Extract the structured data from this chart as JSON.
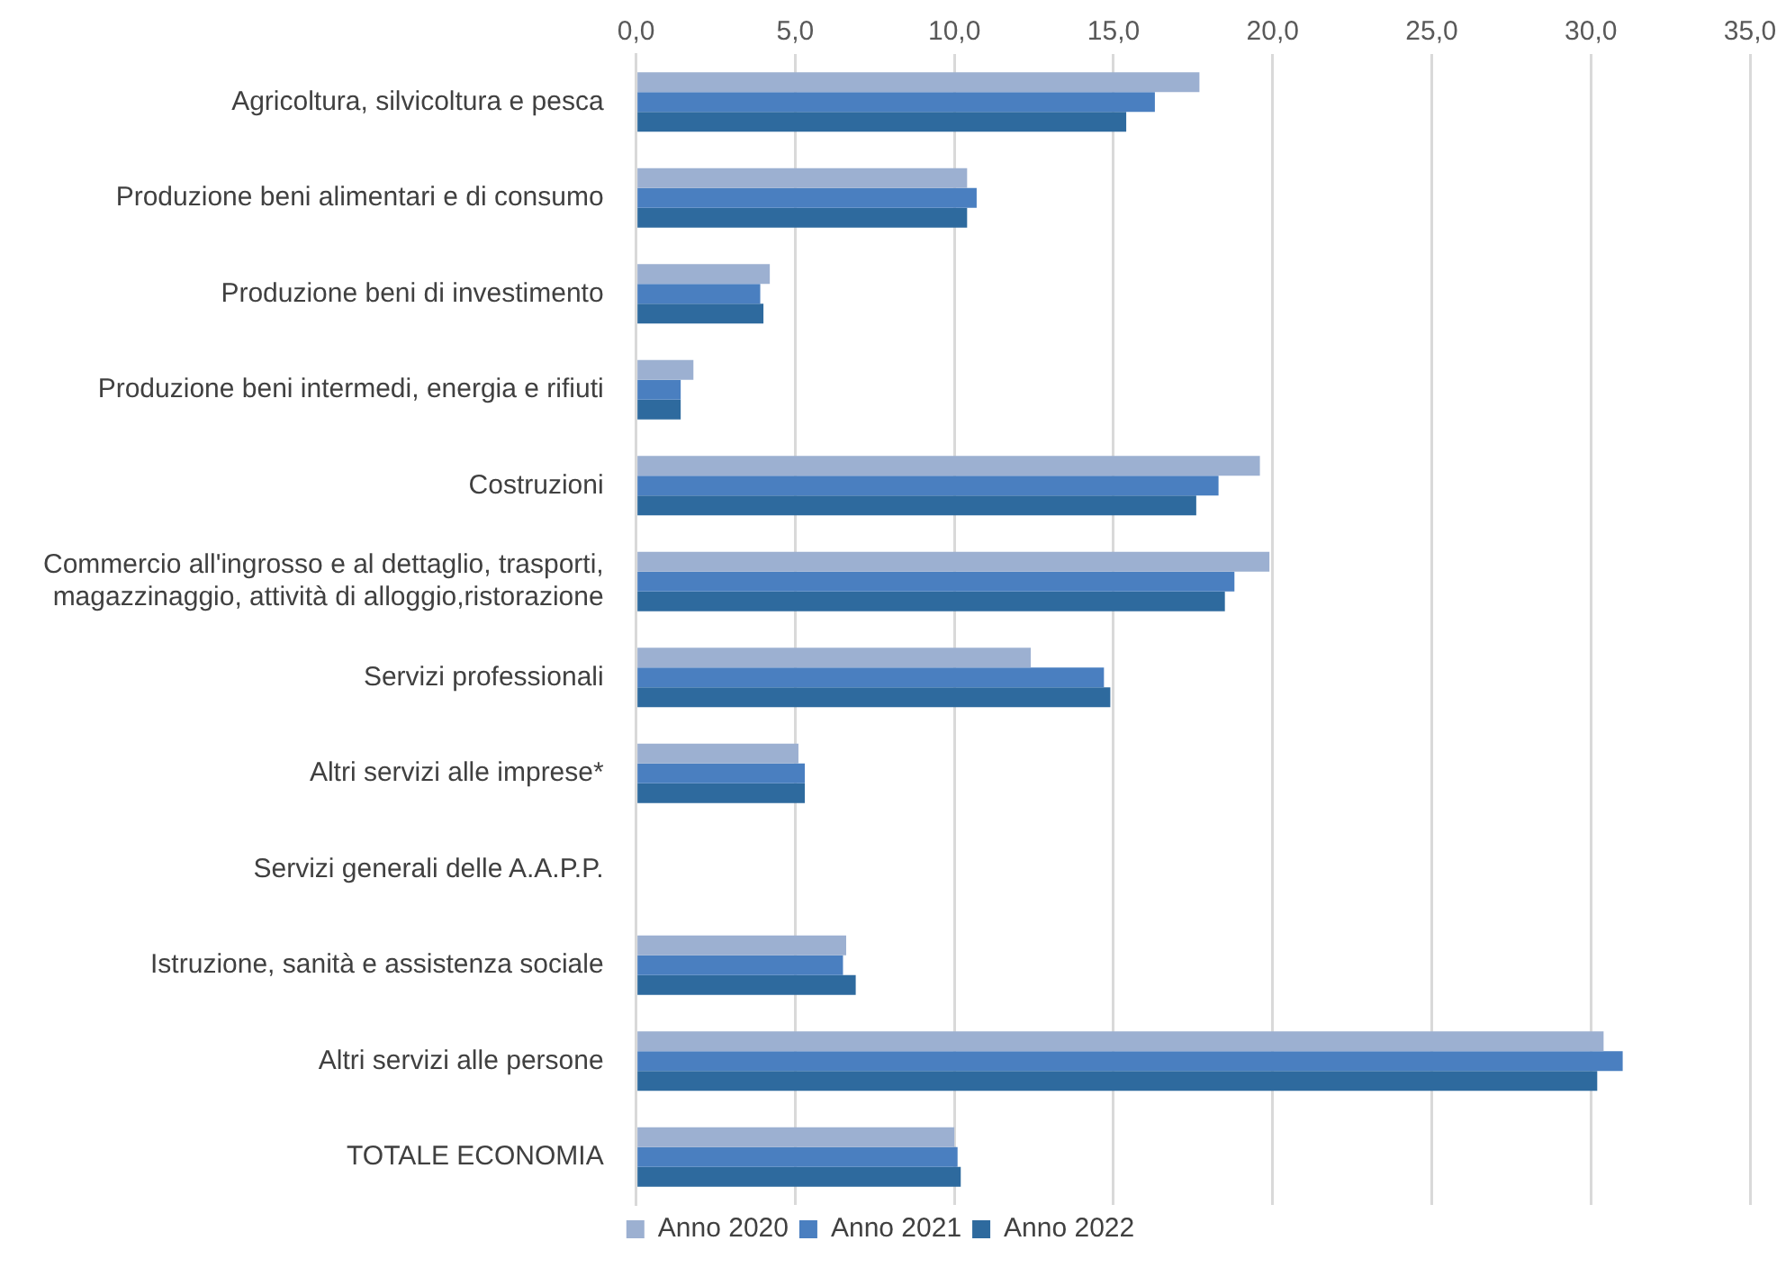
{
  "chart_data": {
    "type": "bar",
    "orientation": "horizontal",
    "categories": [
      "Agricoltura, silvicoltura e pesca",
      "Produzione beni alimentari e di consumo",
      "Produzione beni di investimento",
      "Produzione beni intermedi, energia e rifiuti",
      "Costruzioni",
      "Commercio all'ingrosso e al dettaglio, trasporti,\nmagazzinaggio, attività di alloggio,ristorazione",
      "Servizi professionali",
      "Altri servizi alle imprese*",
      "Servizi generali delle A.A.P.P.",
      "Istruzione, sanità e assistenza sociale",
      "Altri servizi alle persone",
      "TOTALE ECONOMIA"
    ],
    "series": [
      {
        "name": "Anno 2020",
        "color": "#9cb0d1",
        "values": [
          17.7,
          10.4,
          4.2,
          1.8,
          19.6,
          19.9,
          12.4,
          5.1,
          null,
          6.6,
          30.4,
          10.0
        ]
      },
      {
        "name": "Anno 2021",
        "color": "#4a7fc0",
        "values": [
          16.3,
          10.7,
          3.9,
          1.4,
          18.3,
          18.8,
          14.7,
          5.3,
          null,
          6.5,
          31.0,
          10.1
        ]
      },
      {
        "name": "Anno 2022",
        "color": "#2e6a9e",
        "values": [
          15.4,
          10.4,
          4.0,
          1.4,
          17.6,
          18.5,
          14.9,
          5.3,
          null,
          6.9,
          30.2,
          10.2
        ]
      }
    ],
    "xlim": [
      0,
      35
    ],
    "xticks": [
      {
        "value": 0,
        "label": "0,0"
      },
      {
        "value": 5,
        "label": "5,0"
      },
      {
        "value": 10,
        "label": "10,0"
      },
      {
        "value": 15,
        "label": "15,0"
      },
      {
        "value": 20,
        "label": "20,0"
      },
      {
        "value": 25,
        "label": "25,0"
      },
      {
        "value": 30,
        "label": "30,0"
      },
      {
        "value": 35,
        "label": "35,0"
      }
    ],
    "grid": "x",
    "legend": "bottom"
  }
}
